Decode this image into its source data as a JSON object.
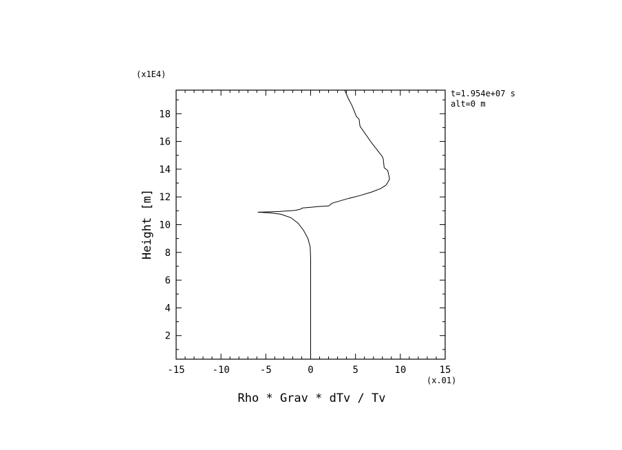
{
  "chart_data": {
    "type": "line",
    "title": "",
    "xlabel": "Rho * Grav * dTv / Tv",
    "ylabel": "Height [m]",
    "x_scale_label": "(x.01)",
    "y_scale_label": "(x1E4)",
    "xlim": [
      -15,
      15
    ],
    "ylim": [
      0.3,
      19.7
    ],
    "x_ticks": [
      -15,
      -10,
      -5,
      0,
      5,
      10,
      15
    ],
    "x_tick_labels": [
      "-15",
      "-10",
      "-5",
      "0",
      "5",
      "10",
      "15"
    ],
    "y_ticks": [
      2,
      4,
      6,
      8,
      10,
      12,
      14,
      16,
      18
    ],
    "y_tick_labels": [
      "2",
      "4",
      "6",
      "8",
      "10",
      "12",
      "14",
      "16",
      "18"
    ],
    "annotations": [
      "t=1.954e+07 s",
      "alt=0 m"
    ],
    "grid": false,
    "series": [
      {
        "values_xy": [
          [
            0.0,
            0.3
          ],
          [
            0.0,
            2
          ],
          [
            0.0,
            4
          ],
          [
            0.0,
            6
          ],
          [
            0.0,
            7.5
          ],
          [
            -0.05,
            8.4
          ],
          [
            -0.3,
            9.0
          ],
          [
            -0.8,
            9.6
          ],
          [
            -1.4,
            10.1
          ],
          [
            -2.2,
            10.5
          ],
          [
            -3.3,
            10.75
          ],
          [
            -4.5,
            10.85
          ],
          [
            -5.9,
            10.9
          ],
          [
            -3.5,
            10.95
          ],
          [
            -1.8,
            11.02
          ],
          [
            -1.2,
            11.1
          ],
          [
            -0.9,
            11.2
          ],
          [
            0.0,
            11.25
          ],
          [
            0.8,
            11.3
          ],
          [
            2.0,
            11.35
          ],
          [
            2.4,
            11.55
          ],
          [
            4.0,
            11.85
          ],
          [
            5.5,
            12.1
          ],
          [
            6.8,
            12.35
          ],
          [
            7.8,
            12.6
          ],
          [
            8.4,
            12.85
          ],
          [
            8.6,
            13.05
          ],
          [
            8.8,
            13.3
          ],
          [
            8.6,
            13.9
          ],
          [
            8.2,
            14.1
          ],
          [
            8.1,
            14.7
          ],
          [
            8.0,
            14.9
          ],
          [
            6.8,
            15.9
          ],
          [
            5.5,
            17.1
          ],
          [
            5.4,
            17.6
          ],
          [
            5.1,
            17.8
          ],
          [
            4.6,
            18.6
          ],
          [
            4.2,
            19.1
          ],
          [
            3.8,
            19.7
          ]
        ]
      }
    ]
  }
}
